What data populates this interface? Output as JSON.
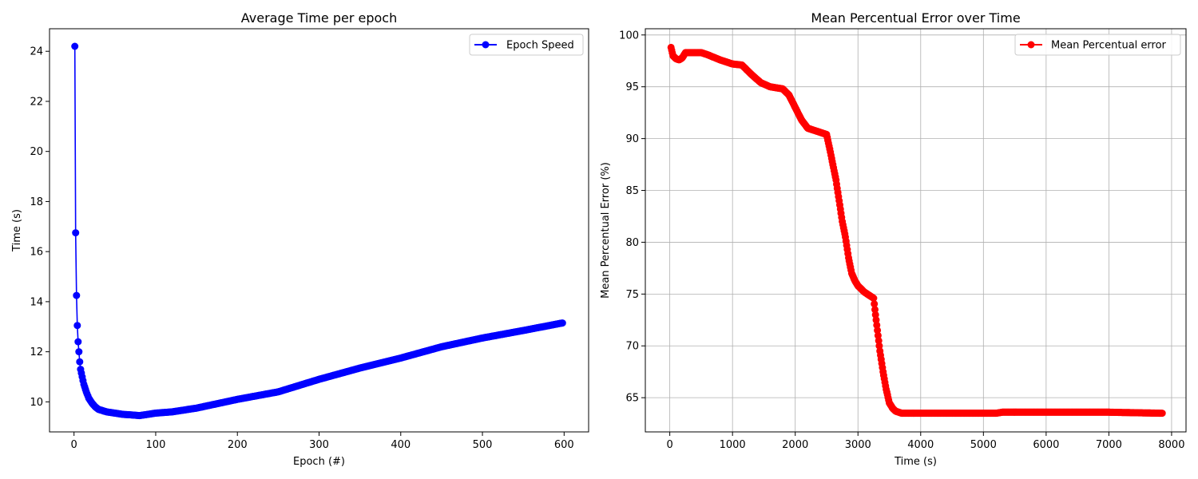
{
  "chart_data": [
    {
      "type": "line",
      "title": "Average Time per epoch",
      "xlabel": "Epoch (#)",
      "ylabel": "Time (s)",
      "xlim": [
        -30,
        630
      ],
      "ylim": [
        8.8,
        24.9
      ],
      "xticks": [
        0,
        100,
        200,
        300,
        400,
        500,
        600
      ],
      "yticks": [
        10,
        12,
        14,
        16,
        18,
        20,
        22,
        24
      ],
      "grid": false,
      "legend": "top-right",
      "series": [
        {
          "name": "Epoch Speed",
          "color": "#0000ff",
          "marker": "circle",
          "knots": [
            [
              1,
              24.2
            ],
            [
              2,
              16.75
            ],
            [
              3,
              14.25
            ],
            [
              4,
              13.05
            ],
            [
              5,
              12.4
            ],
            [
              6,
              12.0
            ],
            [
              7,
              11.6
            ],
            [
              8,
              11.3
            ],
            [
              10,
              11.0
            ],
            [
              12,
              10.7
            ],
            [
              15,
              10.4
            ],
            [
              18,
              10.15
            ],
            [
              22,
              9.95
            ],
            [
              26,
              9.8
            ],
            [
              30,
              9.7
            ],
            [
              40,
              9.6
            ],
            [
              50,
              9.55
            ],
            [
              60,
              9.5
            ],
            [
              70,
              9.48
            ],
            [
              80,
              9.45
            ],
            [
              90,
              9.5
            ],
            [
              100,
              9.55
            ],
            [
              120,
              9.6
            ],
            [
              150,
              9.75
            ],
            [
              200,
              10.1
            ],
            [
              250,
              10.4
            ],
            [
              300,
              10.9
            ],
            [
              350,
              11.35
            ],
            [
              400,
              11.75
            ],
            [
              450,
              12.2
            ],
            [
              500,
              12.55
            ],
            [
              550,
              12.85
            ],
            [
              598,
              13.15
            ]
          ]
        }
      ]
    },
    {
      "type": "line",
      "title": "Mean Percentual Error over Time",
      "xlabel": "Time (s)",
      "ylabel": "Mean Percentual Error (%)",
      "xlim": [
        -390,
        8230
      ],
      "ylim": [
        61.7,
        100.6
      ],
      "xticks": [
        0,
        1000,
        2000,
        3000,
        4000,
        5000,
        6000,
        7000,
        8000
      ],
      "yticks": [
        65,
        70,
        75,
        80,
        85,
        90,
        95,
        100
      ],
      "grid": true,
      "legend": "top-right",
      "series": [
        {
          "name": "Mean Percentual error",
          "color": "#ff0000",
          "marker": "circle",
          "knots": [
            [
              20,
              98.8
            ],
            [
              50,
              98.0
            ],
            [
              100,
              97.7
            ],
            [
              150,
              97.6
            ],
            [
              200,
              97.8
            ],
            [
              250,
              98.3
            ],
            [
              400,
              98.3
            ],
            [
              500,
              98.3
            ],
            [
              600,
              98.1
            ],
            [
              800,
              97.6
            ],
            [
              1000,
              97.2
            ],
            [
              1150,
              97.1
            ],
            [
              1300,
              96.2
            ],
            [
              1450,
              95.4
            ],
            [
              1600,
              95.0
            ],
            [
              1800,
              94.8
            ],
            [
              1900,
              94.2
            ],
            [
              2000,
              93.0
            ],
            [
              2100,
              91.8
            ],
            [
              2200,
              91.0
            ],
            [
              2400,
              90.6
            ],
            [
              2500,
              90.4
            ],
            [
              2550,
              89.0
            ],
            [
              2600,
              87.5
            ],
            [
              2650,
              86.0
            ],
            [
              2700,
              84.0
            ],
            [
              2750,
              82.0
            ],
            [
              2800,
              80.5
            ],
            [
              2850,
              78.5
            ],
            [
              2900,
              77.0
            ],
            [
              2950,
              76.3
            ],
            [
              3000,
              75.8
            ],
            [
              3100,
              75.2
            ],
            [
              3250,
              74.6
            ],
            [
              3270,
              73.5
            ],
            [
              3300,
              72.0
            ],
            [
              3350,
              69.5
            ],
            [
              3400,
              67.5
            ],
            [
              3450,
              65.8
            ],
            [
              3500,
              64.5
            ],
            [
              3550,
              64.0
            ],
            [
              3600,
              63.7
            ],
            [
              3700,
              63.5
            ],
            [
              4000,
              63.5
            ],
            [
              5200,
              63.5
            ],
            [
              5300,
              63.6
            ],
            [
              6000,
              63.6
            ],
            [
              7000,
              63.6
            ],
            [
              7850,
              63.5
            ]
          ]
        }
      ]
    }
  ]
}
